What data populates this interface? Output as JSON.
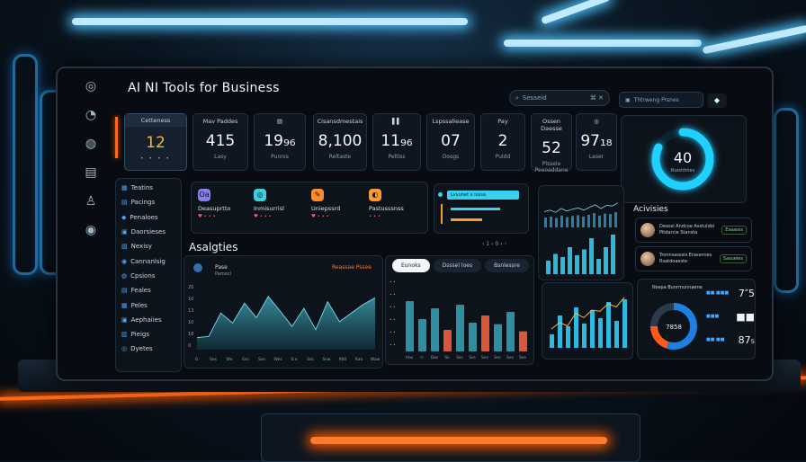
{
  "app": {
    "title": "AI NI Tools for Business"
  },
  "header": {
    "search_placeholder": "Sesseid",
    "search_icons": "⌘ ✕",
    "account_label": "Thtrweng Prsnes"
  },
  "rail_icons": [
    "home-icon",
    "chat-icon",
    "docs-icon",
    "user-icon",
    "settings-icon"
  ],
  "kpis": [
    {
      "label": "Cetteness",
      "value": "12",
      "sub": "• • • •"
    },
    {
      "label": "Mav Paddes",
      "value": "415",
      "sub": "Lasy"
    },
    {
      "label": "▤",
      "value": "19₉₆",
      "sub": "Punnis"
    },
    {
      "label": "Cisansdmestais",
      "value": "8,100",
      "sub": "Reltaste"
    },
    {
      "label": "▌▌",
      "value": "11₉₆",
      "sub": "Peltiss"
    },
    {
      "label": "Lspssaliease",
      "value": "07",
      "sub": "Dosgs"
    },
    {
      "label": "Pay",
      "value": "2",
      "sub": "Puldd"
    },
    {
      "label": "Ossen Daesse",
      "value": "52",
      "sub": "Plssele Peeoaddane"
    },
    {
      "label": "◎",
      "value": "97₁₈",
      "sub": "Laser"
    }
  ],
  "ring": {
    "value": "40",
    "sub": "Rssshhhes",
    "progress": 0.82
  },
  "nav": [
    {
      "icon": "▦",
      "label": "Teatins"
    },
    {
      "icon": "▤",
      "label": "Pacings"
    },
    {
      "icon": "◆",
      "label": "Penaloes"
    },
    {
      "icon": "▣",
      "label": "Daorsieses"
    },
    {
      "icon": "▧",
      "label": "Nexisy"
    },
    {
      "icon": "◉",
      "label": "Cannanlsig"
    },
    {
      "icon": "◍",
      "label": "Cpsions"
    },
    {
      "icon": "▤",
      "label": "Feales"
    },
    {
      "icon": "▦",
      "label": "Peles"
    },
    {
      "icon": "▣",
      "label": "Aephaiies"
    },
    {
      "icon": "▥",
      "label": "Pieigs"
    },
    {
      "icon": "◎",
      "label": "Dyetes"
    }
  ],
  "mini_cards": [
    {
      "icon": "Oa",
      "color": "#8a7ff0",
      "title": "Deasuprtto",
      "sub": "♥ • • •"
    },
    {
      "icon": "◎",
      "color": "#3fd0e0",
      "title": "Inmisurrisl",
      "sub": "♥ • • •"
    },
    {
      "icon": "✎",
      "color": "#ff8a2a",
      "title": "Uniepssrd",
      "sub": "♥ • • •"
    },
    {
      "icon": "◐",
      "color": "#ff9a2a",
      "title": "Pastusssnss",
      "sub": "• • •"
    }
  ],
  "progress_panel": {
    "highlight": "Lvvuhet x iussa",
    "bars": [
      0.55,
      0.35
    ]
  },
  "analytics": {
    "title": "Asalgties",
    "legend_a": "Pase",
    "legend_b": "Pamocl",
    "tag": "Reassae Pssee",
    "pager": "‹ 1 ‹ 0 › ◦"
  },
  "area_chart": {
    "values": [
      18,
      20,
      55,
      40,
      70,
      48,
      80,
      58,
      35,
      62,
      30,
      72,
      42,
      55,
      68,
      78
    ],
    "x_labels": [
      "0.",
      "Ses",
      "We",
      "Ess",
      "Ses",
      "Wes",
      "0.e",
      "Sss",
      "Ssw",
      "900",
      "Rao",
      "Waw"
    ],
    "y_labels": [
      "20",
      "10",
      "13",
      "10",
      "18",
      "0"
    ],
    "y_max": 100,
    "color": "#2f6f7f"
  },
  "bar_panel": {
    "tabs": [
      "Eunoks",
      "Dsssel loes",
      "Bsnlessre"
    ],
    "active_tab": 0,
    "values": [
      70,
      45,
      60,
      30,
      65,
      40,
      50,
      38,
      55,
      28
    ],
    "colors": [
      "teal",
      "teal",
      "teal",
      "orange",
      "teal",
      "teal",
      "orange",
      "teal",
      "teal",
      "orange"
    ],
    "x_labels": [
      "Has",
      "ㅁ",
      "Das",
      "Sk",
      "Sss",
      "Sss",
      "Ses",
      "Sss",
      "Ses",
      "Sse"
    ],
    "y_max": 100
  },
  "tr_bars": {
    "values": [
      30,
      45,
      38,
      60,
      42,
      55,
      80,
      34,
      60,
      88
    ],
    "spark": [
      50,
      55,
      48,
      60,
      52,
      58,
      62,
      55,
      64,
      72,
      60,
      70,
      68,
      78
    ]
  },
  "mr_bars": {
    "values": [
      25,
      60,
      40,
      75,
      45,
      70,
      55,
      85,
      50,
      90
    ],
    "line": [
      30,
      40,
      35,
      55,
      48,
      60,
      58,
      70,
      65,
      80
    ]
  },
  "activities": {
    "title": "Acivisies",
    "rows": [
      {
        "text": "Deassi Andcoe Asstuldoi Pitdarcie Stansta",
        "tag": "Esaasss"
      },
      {
        "text": "Tronnsasssis Erassnnes Rsatdoaeste",
        "tag": "Sasueies"
      }
    ]
  },
  "donut": {
    "title": "Nsepa Bunrmunnaene",
    "center": "7858",
    "slices": [
      0.55,
      0.2,
      0.25
    ],
    "colors": [
      "#1e7fe0",
      "#ff5a1a",
      "#2a3a4a"
    ],
    "legend": [
      {
        "label": "■■ ■■■",
        "value": "7″5"
      },
      {
        "label": "■■■",
        "value": "■■",
        "value2": "8/8"
      },
      {
        "label": "■■ ■■",
        "value": "87₅"
      }
    ]
  }
}
